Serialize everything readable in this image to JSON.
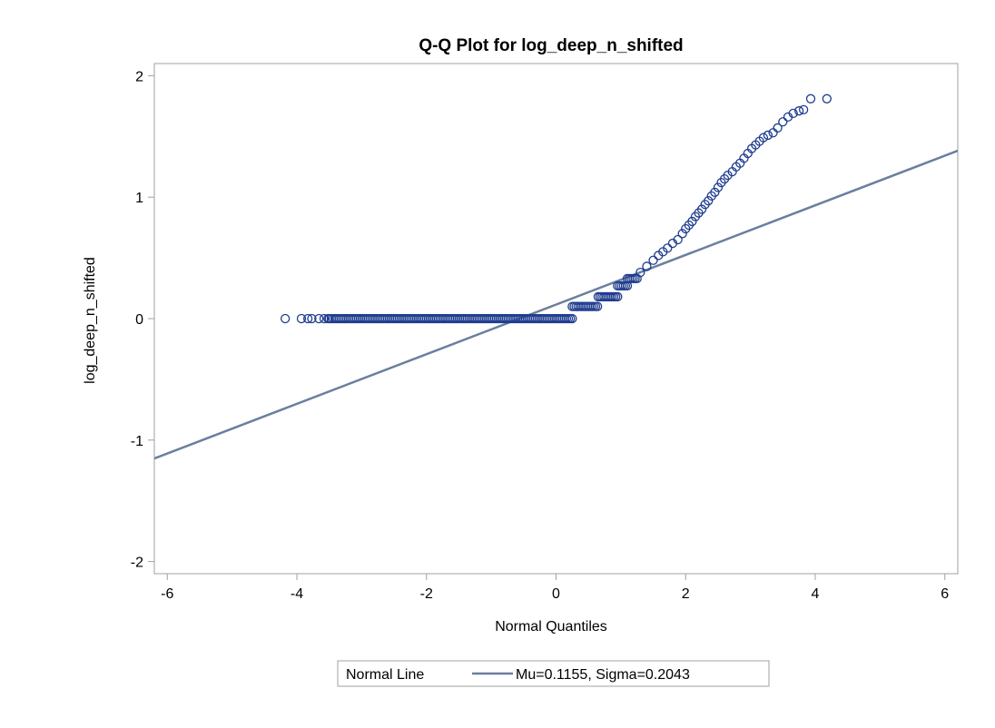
{
  "chart_data": {
    "type": "scatter",
    "title": "Q-Q Plot for log_deep_n_shifted",
    "xlabel": "Normal Quantiles",
    "ylabel": "log_deep_n_shifted",
    "xlim": [
      -6.2,
      6.2
    ],
    "ylim": [
      -2.1,
      2.1
    ],
    "xticks": [
      -6,
      -4,
      -2,
      0,
      2,
      4,
      6
    ],
    "yticks": [
      -2,
      -1,
      0,
      1,
      2
    ],
    "xtick_labels": [
      "-6",
      "-4",
      "-2",
      "0",
      "2",
      "4",
      "6"
    ],
    "ytick_labels": [
      "-2",
      "-1",
      "0",
      "1",
      "2"
    ],
    "grid": false,
    "marker_color": "#1f3c8f",
    "line_color": "#6b7f9e",
    "legend": {
      "position": "bottom",
      "title": "Normal Line",
      "entry": "Mu=0.1155, Sigma=0.2043"
    },
    "normal_line": {
      "mu": 0.1155,
      "sigma": 0.2043
    },
    "series": [
      {
        "values_y": [
          0,
          0,
          0,
          0,
          0,
          0,
          0
        ],
        "x": [
          -4.18,
          -3.93,
          -3.83,
          -3.77,
          -3.66,
          -3.58,
          -3.52
        ]
      }
    ],
    "segments": [
      {
        "x_start": -3.5,
        "x_end": 0.25,
        "y": 0.0,
        "step": 0.03
      },
      {
        "x_start": 0.25,
        "x_end": 0.65,
        "y": 0.1,
        "step": 0.03
      },
      {
        "x_start": 0.65,
        "x_end": 0.95,
        "y": 0.18,
        "step": 0.03
      },
      {
        "x_start": 0.95,
        "x_end": 1.1,
        "y": 0.27,
        "step": 0.03
      },
      {
        "x_start": 1.1,
        "x_end": 1.25,
        "y": 0.33,
        "step": 0.03
      }
    ],
    "upper_points": [
      [
        1.3,
        0.38
      ],
      [
        1.4,
        0.43
      ],
      [
        1.5,
        0.48
      ],
      [
        1.58,
        0.52
      ],
      [
        1.65,
        0.55
      ],
      [
        1.72,
        0.58
      ],
      [
        1.8,
        0.62
      ],
      [
        1.88,
        0.65
      ],
      [
        1.95,
        0.7
      ],
      [
        2.0,
        0.74
      ],
      [
        2.05,
        0.77
      ],
      [
        2.1,
        0.8
      ],
      [
        2.15,
        0.84
      ],
      [
        2.2,
        0.87
      ],
      [
        2.25,
        0.9
      ],
      [
        2.3,
        0.94
      ],
      [
        2.35,
        0.97
      ],
      [
        2.4,
        1.01
      ],
      [
        2.45,
        1.04
      ],
      [
        2.5,
        1.08
      ],
      [
        2.55,
        1.12
      ],
      [
        2.6,
        1.15
      ],
      [
        2.65,
        1.18
      ],
      [
        2.72,
        1.21
      ],
      [
        2.78,
        1.25
      ],
      [
        2.84,
        1.28
      ],
      [
        2.9,
        1.32
      ],
      [
        2.96,
        1.36
      ],
      [
        3.02,
        1.4
      ],
      [
        3.08,
        1.43
      ],
      [
        3.14,
        1.46
      ],
      [
        3.2,
        1.49
      ],
      [
        3.27,
        1.51
      ],
      [
        3.35,
        1.53
      ],
      [
        3.42,
        1.57
      ],
      [
        3.5,
        1.62
      ],
      [
        3.58,
        1.66
      ],
      [
        3.66,
        1.69
      ],
      [
        3.75,
        1.71
      ],
      [
        3.82,
        1.72
      ],
      [
        3.93,
        1.81
      ],
      [
        4.18,
        1.81
      ]
    ]
  }
}
